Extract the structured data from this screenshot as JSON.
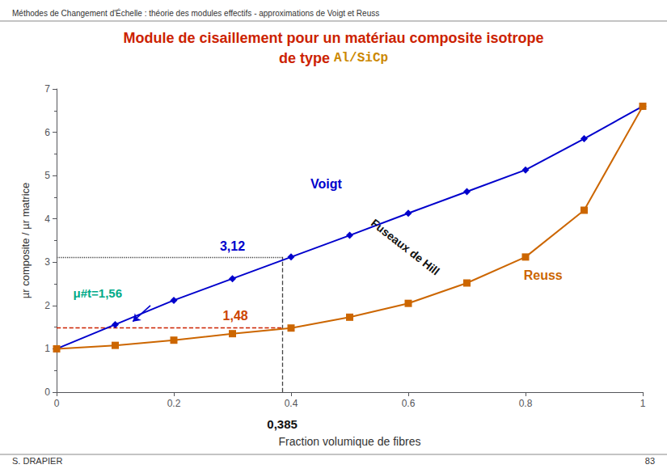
{
  "chart_data": {
    "type": "line",
    "header": "Méthodes de Changement d'Échelle : théorie des modules effectifs - approximations de Voigt et Reuss",
    "title": {
      "text": "Module de cisaillement pour un matériau composite isotrope",
      "color": "#cc2200"
    },
    "subtitle": [
      {
        "text": "de type ",
        "color": "#cc2200"
      },
      {
        "text": "Al/SiCp",
        "color": "#cc8800"
      }
    ],
    "footer_left": "S. DRAPIER",
    "footer_right": "83",
    "background_color": "#ffffff",
    "x_label": "Fraction volumique de fibres",
    "y_label": "µr composite / µr matrice",
    "x": [
      0.0,
      0.1,
      0.2,
      0.3,
      0.4,
      0.5,
      0.6,
      0.7,
      0.8,
      0.9,
      1.0
    ],
    "series": [
      {
        "name": "Voigt",
        "color": "#0000cc",
        "marker": "diamond",
        "values": [
          1.0,
          1.56,
          2.12,
          2.62,
          3.12,
          3.62,
          4.13,
          4.63,
          5.13,
          5.85,
          6.6
        ]
      },
      {
        "name": "Reuss",
        "color": "#cc6600",
        "marker": "square",
        "values": [
          1.0,
          1.08,
          1.2,
          1.35,
          1.48,
          1.73,
          2.05,
          2.52,
          3.12,
          4.2,
          6.6
        ]
      }
    ],
    "xlim": [
      0,
      1
    ],
    "xticks": [
      0,
      0.2,
      0.4,
      0.6,
      0.8,
      1
    ],
    "ylim": [
      0,
      7
    ],
    "yticks": [
      0,
      1,
      2,
      3,
      4,
      5,
      6,
      7
    ],
    "grid": false,
    "reference_lines": [
      {
        "x": [
          0.385,
          0.385
        ],
        "y": [
          0,
          3.12
        ],
        "color": "#444444",
        "line_style": "dashed"
      },
      {
        "x": [
          0,
          0.385
        ],
        "y": [
          3.12,
          3.12
        ],
        "color": "#444444",
        "line_style": "dotted"
      },
      {
        "x": [
          0,
          0.385
        ],
        "y": [
          1.48,
          1.48
        ],
        "color": "#cc2200",
        "line_style": "dashed"
      }
    ],
    "arrows": [
      {
        "from": [
          0.16,
          2.0
        ],
        "to": [
          0.13,
          1.63
        ],
        "color": "#0000cc"
      }
    ],
    "annotations": [
      {
        "text": "3,12",
        "x": 0.3,
        "y": 3.22,
        "color": "#0000cc"
      },
      {
        "text": "1,48",
        "x": 0.305,
        "y": 1.62,
        "color": "#cc4400"
      },
      {
        "text": "0,385",
        "x": 0.385,
        "y": -0.6,
        "color": "#111111"
      },
      {
        "text": "μ#t=1,56",
        "x": 0.07,
        "y": 2.15,
        "color": "#00aa88"
      },
      {
        "text": "Voigt",
        "x": 0.46,
        "y": 4.65,
        "color": "#0000cc"
      },
      {
        "text": "Reuss",
        "x": 0.83,
        "y": 2.55,
        "color": "#cc6600"
      },
      {
        "text": "Fuseaux de Hill",
        "x": 0.595,
        "y": 3.35,
        "color": "#111111",
        "rotated": true
      }
    ]
  }
}
